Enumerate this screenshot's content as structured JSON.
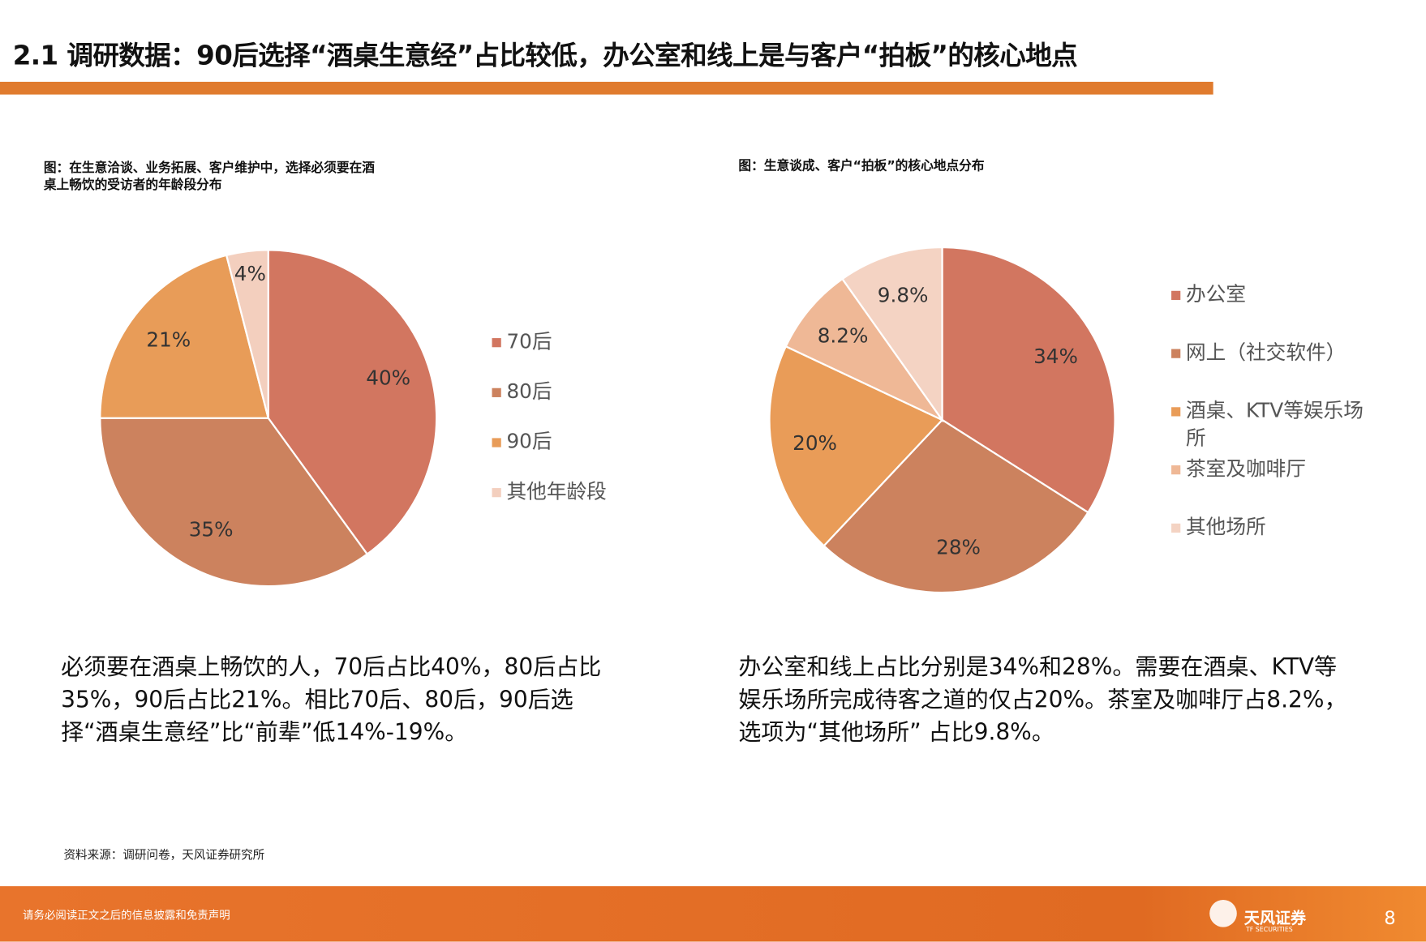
{
  "header": {
    "title": "2.1 调研数据：90后选择“酒桌生意经”占比较低，办公室和线上是与客户“拍板”的核心地点"
  },
  "chart_data": [
    {
      "type": "pie",
      "title": "图：在生意洽谈、业务拓展、客户维护中，选择必须要在酒桌上畅饮的受访者的年龄段分布",
      "categories": [
        "70后",
        "80后",
        "90后",
        "其他年龄段"
      ],
      "values": [
        40,
        35,
        21,
        4
      ],
      "value_labels": [
        "40%",
        "35%",
        "21%",
        "4%"
      ],
      "colors": [
        "#d27660",
        "#cc825e",
        "#e89c58",
        "#f3cfbe"
      ],
      "legend": "right"
    },
    {
      "type": "pie",
      "title": "图：生意谈成、客户“拍板”的核心地点分布",
      "categories": [
        "办公室",
        "网上（社交软件）",
        "酒桌、KTV等娱乐场所",
        "茶室及咖啡厅",
        "其他场所"
      ],
      "values": [
        34,
        28,
        20,
        8.2,
        9.8
      ],
      "value_labels": [
        "34%",
        "28%",
        "20%",
        "8.2%",
        "9.8%"
      ],
      "colors": [
        "#d27660",
        "#cc825e",
        "#e99c58",
        "#efb896",
        "#f4d3c3"
      ],
      "legend": "right"
    }
  ],
  "notes": [
    "必须要在酒桌上畅饮的人，70后占比40%，80后占比35%，90后占比21%。相比70后、80后，90后选择“酒桌生意经”比“前辈”低14%-19%。",
    "办公室和线上占比分别是34%和28%。需要在酒桌、KTV等娱乐场所完成待客之道的仅占20%。茶室及咖啡厅占8.2%，选项为“其他场所” 占比9.8%。"
  ],
  "source": "资料来源：调研问卷，天风证券研究所",
  "footer": {
    "disclaimer": "请务必阅读正文之后的信息披露和免责声明",
    "logo": "天风证券",
    "logo_en": "TF SECURITIES",
    "page": "8"
  }
}
